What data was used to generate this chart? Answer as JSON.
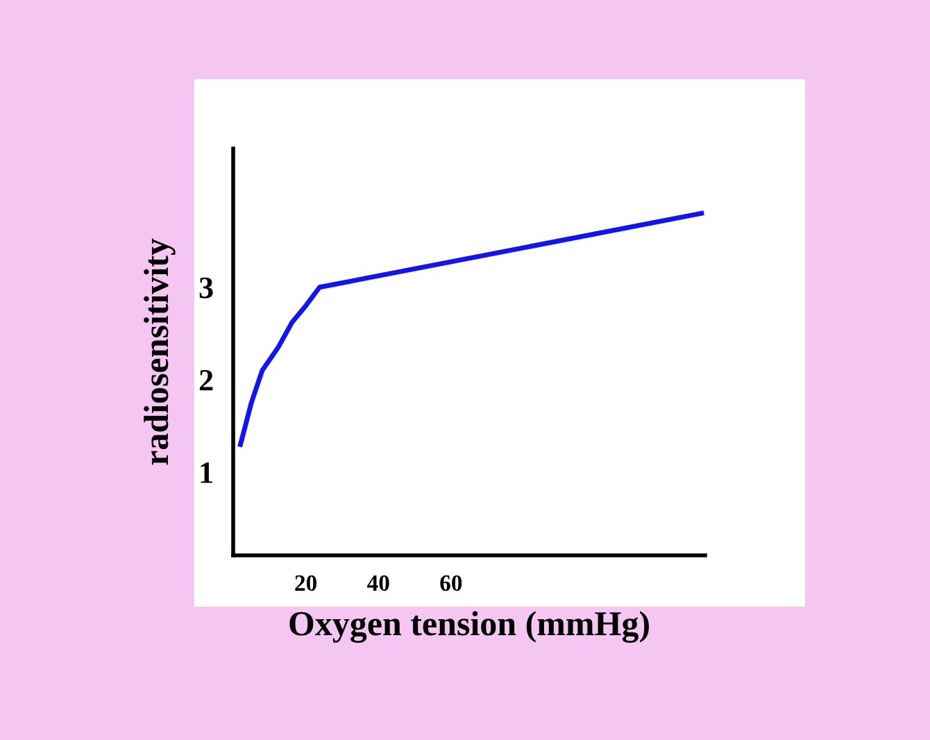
{
  "chart_data": {
    "type": "line",
    "xlabel": "Oxygen tension (mmHg)",
    "ylabel": "radiosensitivity",
    "x": [
      2,
      5,
      8,
      12.4,
      16.2,
      20,
      23.8,
      129
    ],
    "series": [
      {
        "color": "#1414f0",
        "values": [
          1.3,
          1.75,
          2.1,
          2.35,
          2.62,
          2.8,
          3.0,
          3.8
        ]
      }
    ],
    "xlim": [
      0,
      130
    ],
    "ylim": [
      0.1,
      4.5
    ],
    "xticks": [
      20,
      40,
      60
    ],
    "yticks": [
      1,
      2,
      3
    ],
    "grid": false,
    "legend": false,
    "marker": "none",
    "line_style": "solid"
  }
}
